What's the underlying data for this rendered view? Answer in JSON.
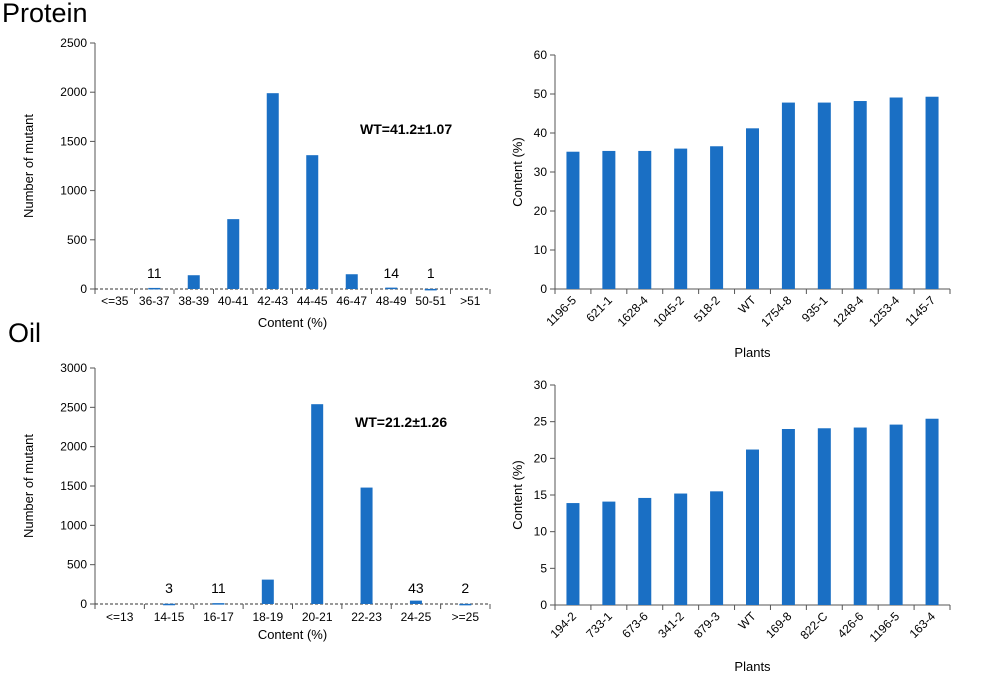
{
  "section_titles": {
    "protein": "Protein",
    "oil": "Oil"
  },
  "colors": {
    "bar": "#1a6fc4",
    "axis": "#555555"
  },
  "chart_data": [
    {
      "type": "bar",
      "panel": "protein-histogram",
      "categories": [
        "<=35",
        "36-37",
        "38-39",
        "40-41",
        "42-43",
        "44-45",
        "46-47",
        "48-49",
        "50-51",
        ">51"
      ],
      "values": [
        0,
        11,
        140,
        710,
        1990,
        1360,
        150,
        14,
        1,
        0
      ],
      "data_labels": [
        "",
        "11",
        "",
        "",
        "",
        "",
        "",
        "14",
        "1",
        ""
      ],
      "xlabel": "Content (%)",
      "ylabel": "Number of mutant",
      "ylim": [
        0,
        2500
      ],
      "yticks": [
        0,
        500,
        1000,
        1500,
        2000,
        2500
      ],
      "annotation": "WT=41.2±1.07"
    },
    {
      "type": "bar",
      "panel": "protein-plants",
      "categories": [
        "1196-5",
        "621-1",
        "1628-4",
        "1045-2",
        "518-2",
        "WT",
        "1754-8",
        "935-1",
        "1248-4",
        "1253-4",
        "1145-7"
      ],
      "values": [
        35.2,
        35.4,
        35.4,
        36.0,
        36.6,
        41.2,
        47.8,
        47.8,
        48.2,
        49.1,
        49.3
      ],
      "xlabel": "Plants",
      "ylabel": "Content (%)",
      "ylim": [
        0,
        60
      ],
      "yticks": [
        0,
        10,
        20,
        30,
        40,
        50,
        60
      ]
    },
    {
      "type": "bar",
      "panel": "oil-histogram",
      "categories": [
        "<=13",
        "14-15",
        "16-17",
        "18-19",
        "20-21",
        "22-23",
        "24-25",
        ">=25"
      ],
      "values": [
        0,
        3,
        11,
        310,
        2540,
        1480,
        43,
        2
      ],
      "data_labels": [
        "",
        "3",
        "11",
        "",
        "",
        "",
        "43",
        "2"
      ],
      "xlabel": "Content (%)",
      "ylabel": "Number of mutant",
      "ylim": [
        0,
        3000
      ],
      "yticks": [
        0,
        500,
        1000,
        1500,
        2000,
        2500,
        3000
      ],
      "annotation": "WT=21.2±1.26"
    },
    {
      "type": "bar",
      "panel": "oil-plants",
      "categories": [
        "194-2",
        "733-1",
        "673-6",
        "341-2",
        "879-3",
        "WT",
        "169-8",
        "822-C",
        "426-6",
        "1196-5",
        "163-4"
      ],
      "values": [
        13.9,
        14.1,
        14.6,
        15.2,
        15.5,
        21.2,
        24.0,
        24.1,
        24.2,
        24.6,
        25.4
      ],
      "xlabel": "Plants",
      "ylabel": "Content (%)",
      "ylim": [
        0,
        30
      ],
      "yticks": [
        0,
        5,
        10,
        15,
        20,
        25,
        30
      ]
    }
  ]
}
